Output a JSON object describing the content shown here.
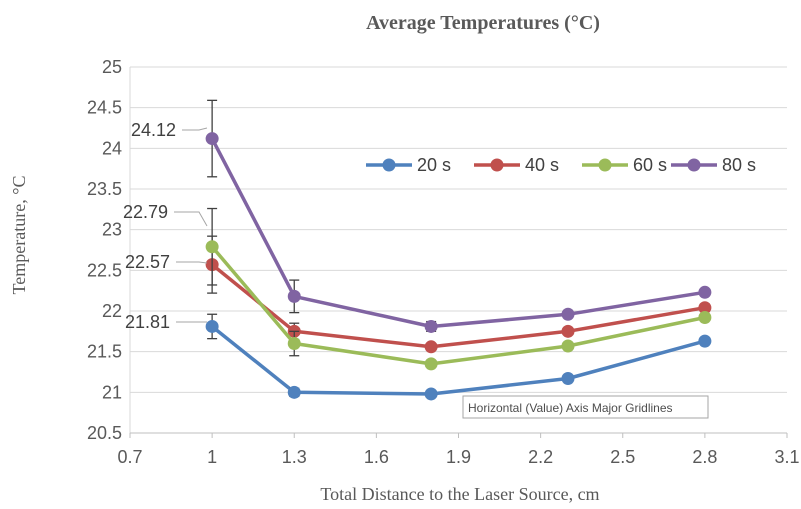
{
  "chart_data": {
    "type": "line",
    "title": "Average Temperatures (°C)",
    "xlabel": "Total Distance to the Laser Source, cm",
    "ylabel": "Temperature, °C",
    "x": [
      1,
      1.3,
      1.8,
      2.3,
      2.8
    ],
    "xlim": [
      0.7,
      3.1
    ],
    "ylim": [
      20.5,
      25
    ],
    "xticks": [
      "0.7",
      "1",
      "1.3",
      "1.6",
      "1.9",
      "2.2",
      "2.5",
      "2.8",
      "3.1"
    ],
    "yticks": [
      "20.5",
      "21",
      "21.5",
      "22",
      "22.5",
      "23",
      "23.5",
      "24",
      "24.5",
      "25"
    ],
    "grid": "horizontal",
    "legend_position": "right",
    "series": [
      {
        "name": "20 s",
        "color": "#4f81bd",
        "values": [
          21.81,
          21.0,
          20.98,
          21.17,
          21.63
        ],
        "error": [
          0.15,
          0.05,
          0.0,
          0.0,
          0.0
        ]
      },
      {
        "name": "40 s",
        "color": "#c0504d",
        "values": [
          22.57,
          21.75,
          21.56,
          21.75,
          22.04
        ],
        "error": [
          0.35,
          0.1,
          0.0,
          0.0,
          0.0
        ]
      },
      {
        "name": "60 s",
        "color": "#9bbb59",
        "values": [
          22.79,
          21.6,
          21.35,
          21.57,
          21.92
        ],
        "error": [
          0.47,
          0.15,
          0.0,
          0.0,
          0.0
        ]
      },
      {
        "name": "80 s",
        "color": "#8064a2",
        "values": [
          24.12,
          22.18,
          21.81,
          21.96,
          22.23
        ],
        "error": [
          0.47,
          0.2,
          0.06,
          0.0,
          0.0
        ]
      }
    ],
    "annotations": [
      "24.12",
      "22.79",
      "22.57",
      "21.81"
    ],
    "tooltip": "Horizontal (Value) Axis Major Gridlines"
  }
}
